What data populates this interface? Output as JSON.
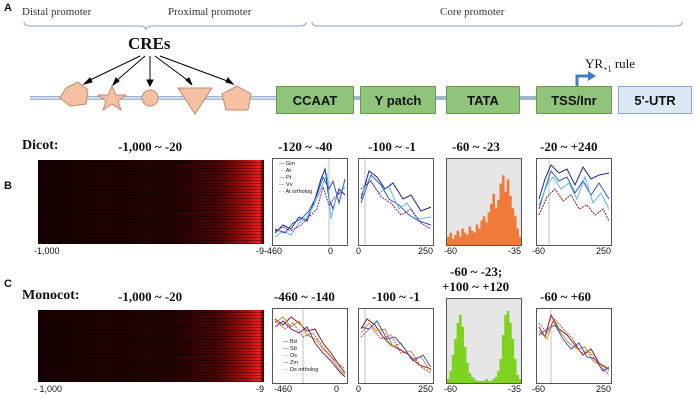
{
  "panel_a": {
    "letter": "A",
    "brackets": {
      "distal": "Distal promoter",
      "proximal": "Proximal promoter",
      "core": "Core promoter"
    },
    "cres_label": "CREs",
    "yr_rule": {
      "prefix": "YR",
      "sub": "+1",
      "suffix": " rule"
    },
    "elements": [
      "CCAAT",
      "Y patch",
      "TATA",
      "TSS/Inr",
      "5'-UTR"
    ],
    "colors": {
      "element_fill": "#8fc47a",
      "utr_fill": "#dbe8f5",
      "cre_fill": "#f6c0a2",
      "arrow": "#3d7fc1"
    }
  },
  "panel_b": {
    "letter": "B",
    "species": "Dicot:",
    "heatmap_range": "-1,000 ~ -20",
    "heatmap_ticks": [
      "-1,000",
      "-9"
    ],
    "charts": [
      {
        "range": "-120 ~ -40",
        "ticks": [
          "-460",
          "0"
        ],
        "legend": [
          "Gm",
          "At",
          "Pt",
          "Vv",
          "At ortholog"
        ]
      },
      {
        "range": "-100 ~ -1",
        "ticks": [
          "0",
          "250"
        ]
      },
      {
        "range": "-60 ~ -23",
        "ticks": [
          "-60",
          "-35"
        ]
      },
      {
        "range": "-20 ~ +240",
        "ticks": [
          "-60",
          "250"
        ]
      }
    ]
  },
  "panel_c": {
    "letter": "C",
    "species": "Monocot:",
    "heatmap_range": "-1,000 ~ -20",
    "heatmap_ticks": [
      "- 1,000",
      "-9"
    ],
    "charts": [
      {
        "range": "-460 ~ -140",
        "ticks": [
          "-460",
          "0"
        ],
        "legend": [
          "Bd",
          "Sb",
          "Os",
          "Zm",
          "Os ortholog"
        ]
      },
      {
        "range": "-100 ~ -1",
        "ticks": [
          "0",
          "250"
        ]
      },
      {
        "range": "-60 ~ -23;",
        "range2": "+100 ~ +120",
        "ticks": [
          "-60",
          "-35"
        ]
      },
      {
        "range": "-60 ~ +60",
        "ticks": [
          "-60",
          "250"
        ]
      }
    ]
  },
  "chart_data": [
    {
      "type": "area",
      "panel": "B",
      "x_range": [
        -60,
        -35
      ],
      "color": "#f07a3a",
      "values": [
        4,
        6,
        3,
        5,
        7,
        4,
        8,
        6,
        5,
        9,
        7,
        6,
        10,
        8,
        12,
        14,
        11,
        16,
        20,
        25,
        18,
        22,
        30,
        34,
        26,
        32,
        24,
        18,
        14,
        8,
        4
      ]
    },
    {
      "type": "area",
      "panel": "C",
      "x_range": [
        -60,
        -35
      ],
      "color": "#7ed321",
      "values": [
        2,
        6,
        14,
        22,
        30,
        34,
        28,
        18,
        10,
        5,
        3,
        2,
        1,
        1,
        1,
        1,
        2,
        1,
        1,
        2,
        3,
        6,
        12,
        24,
        34,
        36,
        30,
        22,
        12,
        4,
        2
      ]
    }
  ]
}
